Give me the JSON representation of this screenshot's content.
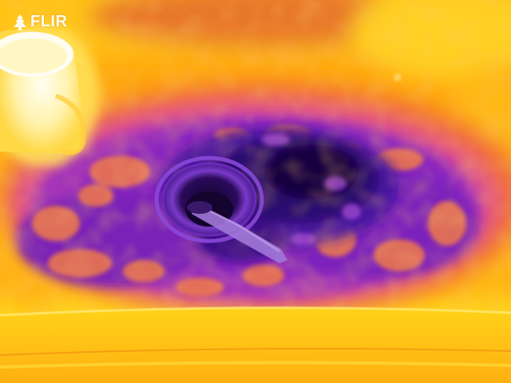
{
  "image": {
    "kind": "thermal-photo",
    "palette": "iron",
    "watermark": "FLIR",
    "watermark_icon": "flame-logo-icon",
    "colors": {
      "hot_white": "#fffbe0",
      "hot_yellow": "#ffd21a",
      "warm_orange": "#ff9a0c",
      "mid_magenta": "#c0309a",
      "cool_purple": "#6a18b8",
      "cold_navy": "#1a0848"
    }
  }
}
